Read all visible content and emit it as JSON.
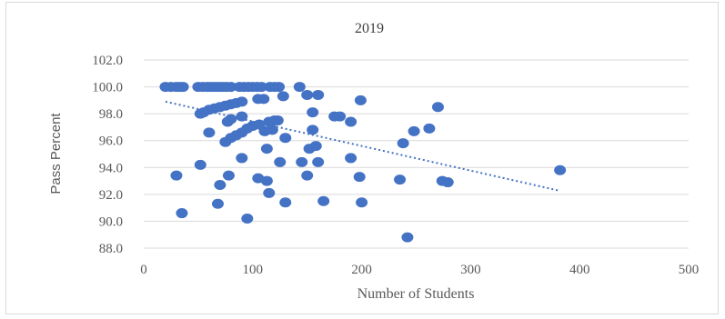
{
  "chart_data": {
    "type": "scatter",
    "title": "2019",
    "xlabel": "Number of Students",
    "ylabel": "Pass Percent",
    "xlim": [
      0,
      500
    ],
    "ylim": [
      88.0,
      102.0
    ],
    "xticks": [
      "0",
      "100",
      "200",
      "300",
      "400",
      "500"
    ],
    "yticks": [
      "88.0",
      "90.0",
      "92.0",
      "94.0",
      "96.0",
      "98.0",
      "100.0",
      "102.0"
    ],
    "grid": true,
    "marker_color": "#4472c4",
    "trendline": {
      "type": "linear",
      "style": "dotted",
      "color": "#4472c4",
      "x": [
        20,
        380
      ],
      "y": [
        98.9,
        92.3
      ]
    },
    "points": [
      [
        20,
        100
      ],
      [
        25,
        100
      ],
      [
        30,
        100
      ],
      [
        33,
        100
      ],
      [
        36,
        100
      ],
      [
        50,
        100
      ],
      [
        54,
        100
      ],
      [
        58,
        100
      ],
      [
        61,
        100
      ],
      [
        64,
        100
      ],
      [
        67,
        100
      ],
      [
        70,
        100
      ],
      [
        73,
        100
      ],
      [
        76,
        100
      ],
      [
        80,
        100
      ],
      [
        88,
        100
      ],
      [
        92,
        100
      ],
      [
        96,
        100
      ],
      [
        100,
        100
      ],
      [
        104,
        100
      ],
      [
        108,
        100
      ],
      [
        116,
        100
      ],
      [
        120,
        100
      ],
      [
        124,
        100
      ],
      [
        143,
        100
      ],
      [
        150,
        99.4
      ],
      [
        160,
        99.4
      ],
      [
        128,
        99.3
      ],
      [
        110,
        99.1
      ],
      [
        105,
        99.1
      ],
      [
        199,
        99.0
      ],
      [
        90,
        98.9
      ],
      [
        85,
        98.8
      ],
      [
        80,
        98.7
      ],
      [
        75,
        98.6
      ],
      [
        70,
        98.5
      ],
      [
        65,
        98.4
      ],
      [
        60,
        98.3
      ],
      [
        55,
        98.1
      ],
      [
        52,
        98.0
      ],
      [
        270,
        98.5
      ],
      [
        155,
        98.1
      ],
      [
        175,
        97.8
      ],
      [
        180,
        97.8
      ],
      [
        190,
        97.4
      ],
      [
        90,
        97.8
      ],
      [
        80,
        97.6
      ],
      [
        77,
        97.4
      ],
      [
        115,
        97.4
      ],
      [
        120,
        97.5
      ],
      [
        123,
        97.5
      ],
      [
        100,
        97.1
      ],
      [
        106,
        97.2
      ],
      [
        111,
        96.7
      ],
      [
        118,
        96.8
      ],
      [
        95,
        96.9
      ],
      [
        60,
        96.6
      ],
      [
        90,
        96.6
      ],
      [
        85,
        96.4
      ],
      [
        80,
        96.2
      ],
      [
        75,
        95.9
      ],
      [
        155,
        96.8
      ],
      [
        130,
        96.2
      ],
      [
        262,
        96.9
      ],
      [
        248,
        96.7
      ],
      [
        238,
        95.8
      ],
      [
        158,
        95.6
      ],
      [
        152,
        95.4
      ],
      [
        113,
        95.4
      ],
      [
        90,
        94.7
      ],
      [
        125,
        94.4
      ],
      [
        145,
        94.4
      ],
      [
        160,
        94.4
      ],
      [
        190,
        94.7
      ],
      [
        52,
        94.2
      ],
      [
        150,
        93.4
      ],
      [
        30,
        93.4
      ],
      [
        78,
        93.4
      ],
      [
        105,
        93.2
      ],
      [
        113,
        93.0
      ],
      [
        198,
        93.3
      ],
      [
        235,
        93.1
      ],
      [
        274,
        93.0
      ],
      [
        279,
        92.9
      ],
      [
        70,
        92.7
      ],
      [
        115,
        92.1
      ],
      [
        68,
        91.3
      ],
      [
        130,
        91.4
      ],
      [
        165,
        91.5
      ],
      [
        200,
        91.4
      ],
      [
        35,
        90.6
      ],
      [
        95,
        90.2
      ],
      [
        242,
        88.8
      ],
      [
        382,
        93.8
      ]
    ]
  }
}
